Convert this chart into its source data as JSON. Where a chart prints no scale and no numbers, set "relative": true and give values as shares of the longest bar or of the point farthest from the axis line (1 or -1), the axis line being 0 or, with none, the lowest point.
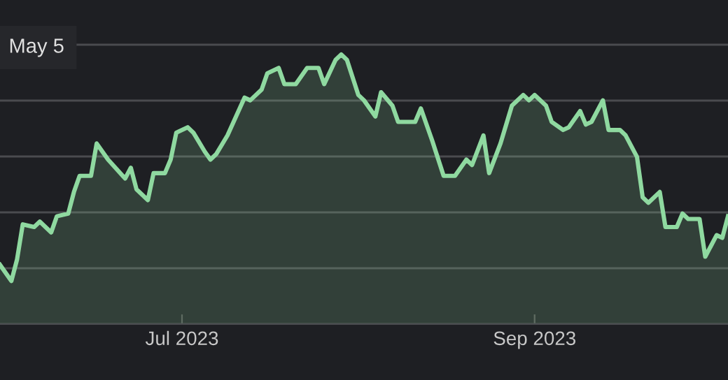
{
  "chart_data": {
    "type": "area",
    "relative": true,
    "grid": "y",
    "annotations": [
      "May 5"
    ],
    "xlim": [
      "2023-05-30",
      "2023-10-05"
    ],
    "xticks": [
      {
        "value": "2023-07-01",
        "label": "Jul 2023"
      },
      {
        "value": "2023-09-01",
        "label": "Sep 2023"
      }
    ],
    "x": [
      "2023-05-30",
      "2023-06-01",
      "2023-06-02",
      "2023-06-03",
      "2023-06-05",
      "2023-06-06",
      "2023-06-08",
      "2023-06-09",
      "2023-06-11",
      "2023-06-12",
      "2023-06-13",
      "2023-06-15",
      "2023-06-16",
      "2023-06-18",
      "2023-06-21",
      "2023-06-22",
      "2023-06-23",
      "2023-06-25",
      "2023-06-26",
      "2023-06-28",
      "2023-06-29",
      "2023-06-30",
      "2023-07-02",
      "2023-07-03",
      "2023-07-05",
      "2023-07-06",
      "2023-07-07",
      "2023-07-09",
      "2023-07-12",
      "2023-07-13",
      "2023-07-15",
      "2023-07-16",
      "2023-07-18",
      "2023-07-19",
      "2023-07-21",
      "2023-07-23",
      "2023-07-25",
      "2023-07-26",
      "2023-07-28",
      "2023-07-29",
      "2023-07-30",
      "2023-08-01",
      "2023-08-02",
      "2023-08-04",
      "2023-08-05",
      "2023-08-07",
      "2023-08-08",
      "2023-08-10",
      "2023-08-11",
      "2023-08-12",
      "2023-08-14",
      "2023-08-16",
      "2023-08-18",
      "2023-08-20",
      "2023-08-21",
      "2023-08-23",
      "2023-08-24",
      "2023-08-26",
      "2023-08-28",
      "2023-08-30",
      "2023-08-31",
      "2023-09-01",
      "2023-09-03",
      "2023-09-04",
      "2023-09-06",
      "2023-09-07",
      "2023-09-09",
      "2023-09-10",
      "2023-09-11",
      "2023-09-13",
      "2023-09-14",
      "2023-09-16",
      "2023-09-17",
      "2023-09-19",
      "2023-09-20",
      "2023-09-21",
      "2023-09-23",
      "2023-09-24",
      "2023-09-26",
      "2023-09-27",
      "2023-09-28",
      "2023-09-30",
      "2023-10-01",
      "2023-10-03",
      "2023-10-04",
      "2023-10-05"
    ],
    "series": [
      {
        "color": "#8fd9a0",
        "values": [
          0.22,
          0.16,
          0.24,
          0.37,
          0.36,
          0.38,
          0.34,
          0.4,
          0.41,
          0.49,
          0.55,
          0.55,
          0.67,
          0.61,
          0.54,
          0.58,
          0.5,
          0.46,
          0.56,
          0.56,
          0.61,
          0.71,
          0.73,
          0.71,
          0.64,
          0.61,
          0.63,
          0.7,
          0.84,
          0.83,
          0.87,
          0.93,
          0.95,
          0.89,
          0.89,
          0.95,
          0.95,
          0.89,
          0.98,
          1.0,
          0.98,
          0.85,
          0.83,
          0.77,
          0.86,
          0.81,
          0.75,
          0.75,
          0.75,
          0.8,
          0.68,
          0.55,
          0.55,
          0.61,
          0.59,
          0.7,
          0.56,
          0.67,
          0.81,
          0.85,
          0.83,
          0.85,
          0.81,
          0.75,
          0.72,
          0.73,
          0.79,
          0.74,
          0.75,
          0.83,
          0.72,
          0.72,
          0.7,
          0.62,
          0.47,
          0.45,
          0.49,
          0.36,
          0.36,
          0.41,
          0.39,
          0.39,
          0.25,
          0.33,
          0.32,
          0.4
        ]
      }
    ]
  }
}
